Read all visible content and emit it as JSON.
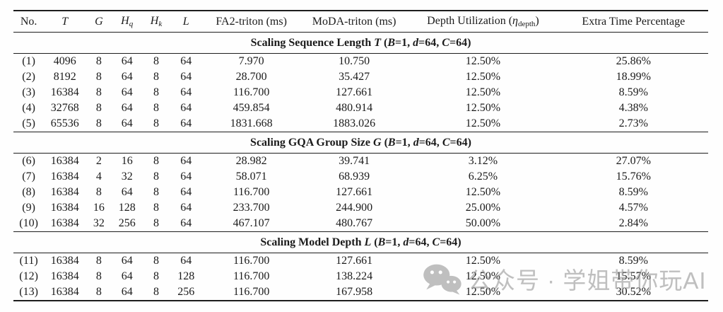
{
  "table": {
    "header_cells": [
      {
        "name": "no",
        "parts": [
          [
            "r",
            "No."
          ]
        ]
      },
      {
        "name": "t",
        "parts": [
          [
            "i",
            "T"
          ]
        ]
      },
      {
        "name": "g",
        "parts": [
          [
            "i",
            "G"
          ]
        ]
      },
      {
        "name": "hq",
        "parts": [
          [
            "i",
            "H"
          ],
          [
            "isub",
            "q"
          ]
        ]
      },
      {
        "name": "hk",
        "parts": [
          [
            "i",
            "H"
          ],
          [
            "isub",
            "k"
          ]
        ]
      },
      {
        "name": "l",
        "parts": [
          [
            "i",
            "L"
          ]
        ]
      },
      {
        "name": "fa2",
        "parts": [
          [
            "r",
            "FA2-triton (ms)"
          ]
        ]
      },
      {
        "name": "moda",
        "parts": [
          [
            "r",
            "MoDA-triton (ms)"
          ]
        ]
      },
      {
        "name": "depth",
        "parts": [
          [
            "r",
            "Depth Utilization ("
          ],
          [
            "i",
            "η"
          ],
          [
            "rsub",
            "depth"
          ],
          [
            "r",
            ")"
          ]
        ]
      },
      {
        "name": "extra",
        "parts": [
          [
            "r",
            "Extra Time Percentage"
          ]
        ]
      }
    ],
    "sections": [
      {
        "title_parts": [
          [
            "b",
            "Scaling Sequence Length "
          ],
          [
            "bi",
            "T"
          ],
          [
            "b",
            " ("
          ],
          [
            "bi",
            "B"
          ],
          [
            "b",
            "=1, "
          ],
          [
            "bi",
            "d"
          ],
          [
            "b",
            "=64, "
          ],
          [
            "bi",
            "C"
          ],
          [
            "b",
            "=64)"
          ]
        ],
        "rows": [
          [
            "(1)",
            "4096",
            "8",
            "64",
            "8",
            "64",
            "7.970",
            "10.750",
            "12.50%",
            "25.86%"
          ],
          [
            "(2)",
            "8192",
            "8",
            "64",
            "8",
            "64",
            "28.700",
            "35.427",
            "12.50%",
            "18.99%"
          ],
          [
            "(3)",
            "16384",
            "8",
            "64",
            "8",
            "64",
            "116.700",
            "127.661",
            "12.50%",
            "8.59%"
          ],
          [
            "(4)",
            "32768",
            "8",
            "64",
            "8",
            "64",
            "459.854",
            "480.914",
            "12.50%",
            "4.38%"
          ],
          [
            "(5)",
            "65536",
            "8",
            "64",
            "8",
            "64",
            "1831.668",
            "1883.026",
            "12.50%",
            "2.73%"
          ]
        ]
      },
      {
        "title_parts": [
          [
            "b",
            "Scaling GQA Group Size "
          ],
          [
            "bi",
            "G"
          ],
          [
            "b",
            " ("
          ],
          [
            "bi",
            "B"
          ],
          [
            "b",
            "=1, "
          ],
          [
            "bi",
            "d"
          ],
          [
            "b",
            "=64, "
          ],
          [
            "bi",
            "C"
          ],
          [
            "b",
            "=64)"
          ]
        ],
        "rows": [
          [
            "(6)",
            "16384",
            "2",
            "16",
            "8",
            "64",
            "28.982",
            "39.741",
            "3.12%",
            "27.07%"
          ],
          [
            "(7)",
            "16384",
            "4",
            "32",
            "8",
            "64",
            "58.071",
            "68.939",
            "6.25%",
            "15.76%"
          ],
          [
            "(8)",
            "16384",
            "8",
            "64",
            "8",
            "64",
            "116.700",
            "127.661",
            "12.50%",
            "8.59%"
          ],
          [
            "(9)",
            "16384",
            "16",
            "128",
            "8",
            "64",
            "233.700",
            "244.900",
            "25.00%",
            "4.57%"
          ],
          [
            "(10)",
            "16384",
            "32",
            "256",
            "8",
            "64",
            "467.107",
            "480.767",
            "50.00%",
            "2.84%"
          ]
        ]
      },
      {
        "title_parts": [
          [
            "b",
            "Scaling Model Depth "
          ],
          [
            "bi",
            "L"
          ],
          [
            "b",
            " ("
          ],
          [
            "bi",
            "B"
          ],
          [
            "b",
            "=1, "
          ],
          [
            "bi",
            "d"
          ],
          [
            "b",
            "=64, "
          ],
          [
            "bi",
            "C"
          ],
          [
            "b",
            "=64)"
          ]
        ],
        "rows": [
          [
            "(11)",
            "16384",
            "8",
            "64",
            "8",
            "64",
            "116.700",
            "127.661",
            "12.50%",
            "8.59%"
          ],
          [
            "(12)",
            "16384",
            "8",
            "64",
            "8",
            "128",
            "116.700",
            "138.224",
            "12.50%",
            "15.57%"
          ],
          [
            "(13)",
            "16384",
            "8",
            "64",
            "8",
            "256",
            "116.700",
            "167.958",
            "12.50%",
            "30.52%"
          ]
        ]
      }
    ]
  },
  "watermark": {
    "icon": "wechat-icon",
    "text": "公众号 · 学姐带你玩AI"
  }
}
